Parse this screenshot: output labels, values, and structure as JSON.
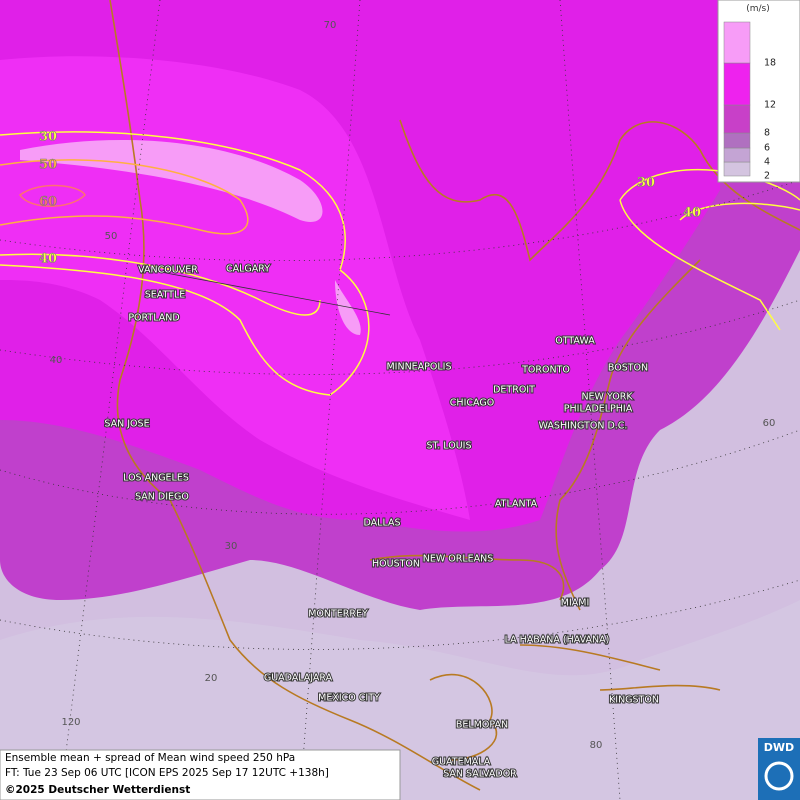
{
  "legend": {
    "unit": "(m/s)",
    "levels": [
      2,
      4,
      6,
      8,
      12,
      18
    ]
  },
  "contour_labels": [
    "30",
    "50",
    "60",
    "40",
    "30",
    "40"
  ],
  "grid_labels": [
    "70",
    "50",
    "40",
    "30",
    "20",
    "120",
    "80",
    "60"
  ],
  "cities": [
    "VANCOUVER",
    "CALGARY",
    "SEATTLE",
    "PORTLAND",
    "MINNEAPOLIS",
    "TORONTO",
    "OTTAWA",
    "DETROIT",
    "BOSTON",
    "CHICAGO",
    "NEW YORK",
    "PHILADELPHIA",
    "WASHINGTON D.C.",
    "SAN JOSE",
    "ST. LOUIS",
    "LOS ANGELES",
    "SAN DIEGO",
    "ATLANTA",
    "DALLAS",
    "HOUSTON",
    "NEW ORLEANS",
    "MIAMI",
    "MONTERREY",
    "LA HABANA (HAVANA)",
    "GUADALAJARA",
    "MEXICO CITY",
    "KINGSTON",
    "BELMOPAN",
    "GUATEMALA",
    "SAN SALVADOR"
  ],
  "info": [
    "Ensemble mean + spread of Mean wind speed 250 hPa",
    "FT: Tue 23 Sep 06 UTC [ICON EPS 2025 Sep 17 12UTC +138h]",
    "©2025 Deutscher Wetterdienst"
  ],
  "logo": "DWD"
}
